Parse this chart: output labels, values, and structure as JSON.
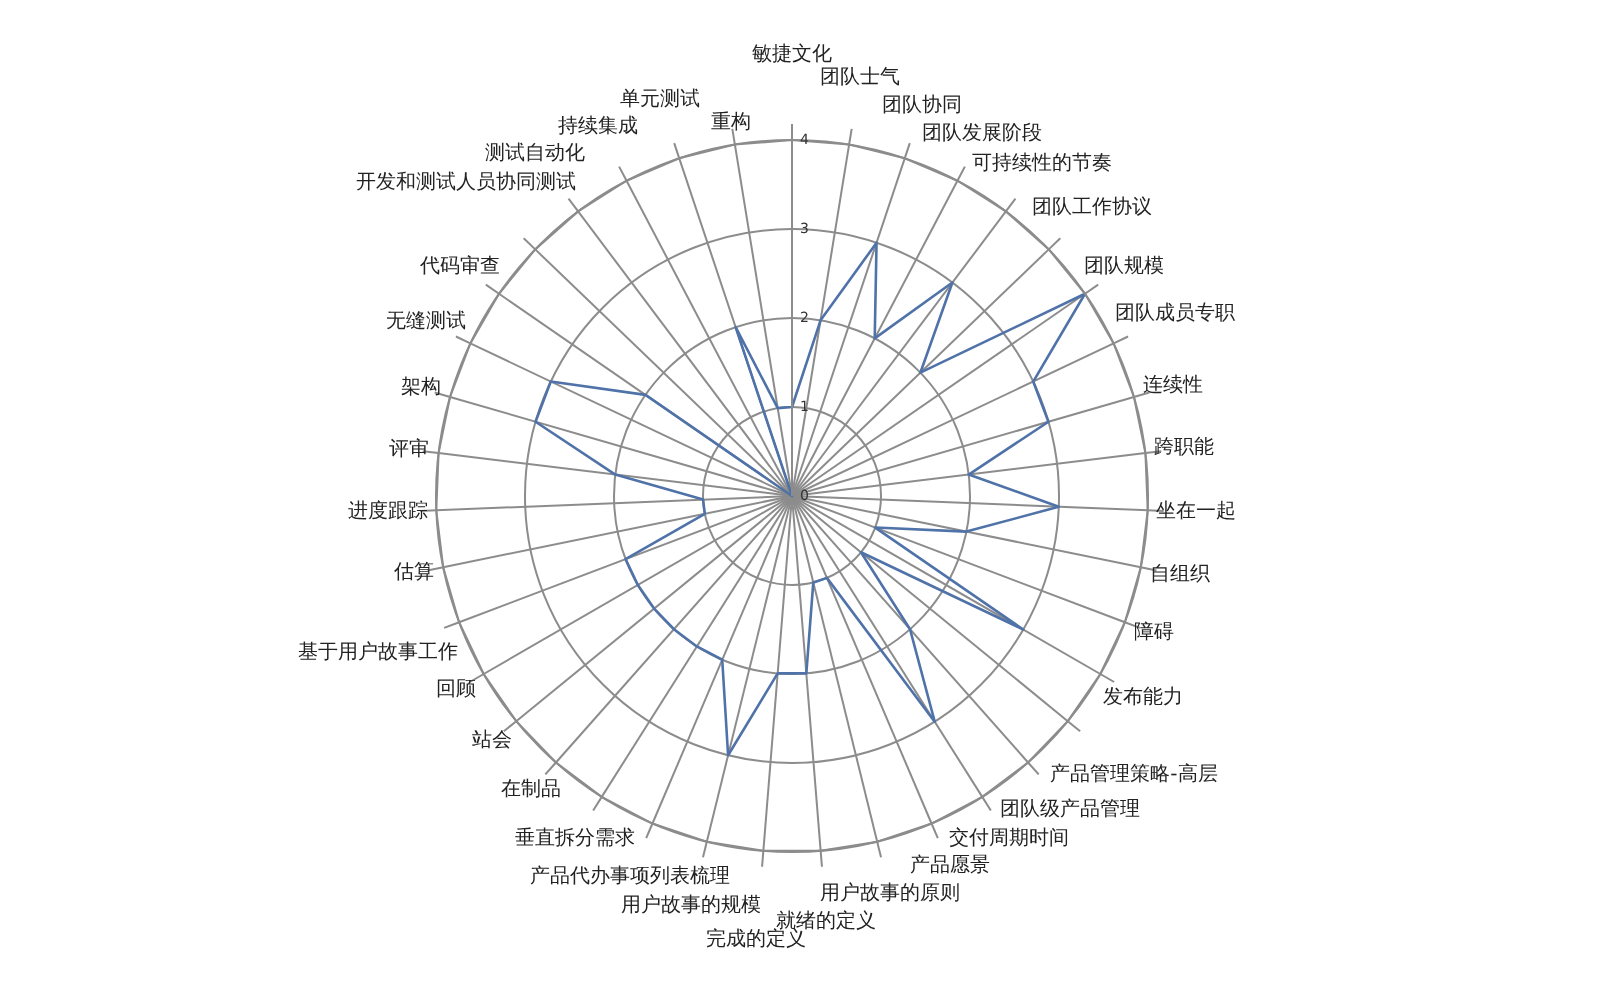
{
  "chart_data": {
    "type": "radar",
    "categories": [
      "敏捷文化",
      "团队士气",
      "团队协同",
      "团队发展阶段",
      "可持续性的节奏",
      "团队工作协议",
      "团队规模",
      "团队成员专职",
      "连续性",
      "跨职能",
      "坐在一起",
      "自组织",
      "障碍",
      "发布能力",
      "产品管理策略-高层",
      "团队级产品管理",
      "交付周期时间",
      "产品愿景",
      "用户故事的原则",
      "就绪的定义",
      "完成的定义",
      "用户故事的规模",
      "产品代办事项列表梳理",
      "垂直拆分需求",
      "在制品",
      "站会",
      "回顾",
      "基于用户故事工作",
      "估算",
      "进度跟踪",
      "评审",
      "架构",
      "无缝测试",
      "代码审查",
      "开发和测试人员协同测试",
      "测试自动化",
      "持续集成",
      "单元测试",
      "重构"
    ],
    "series": [
      {
        "color": "#4f72a8",
        "values": [
          1,
          2,
          3,
          2,
          3,
          2,
          4,
          3,
          3,
          2,
          3,
          2,
          1,
          3,
          1,
          2,
          3,
          1,
          1,
          2,
          2,
          3,
          2,
          2,
          2,
          2,
          2,
          2,
          1,
          1,
          2,
          3,
          3,
          2,
          0,
          0,
          0,
          2,
          1
        ]
      }
    ],
    "ylim": [
      0,
      4
    ],
    "yticks": [
      0,
      1,
      2,
      3,
      4
    ],
    "grid": true,
    "marker": "none",
    "legend": false
  }
}
